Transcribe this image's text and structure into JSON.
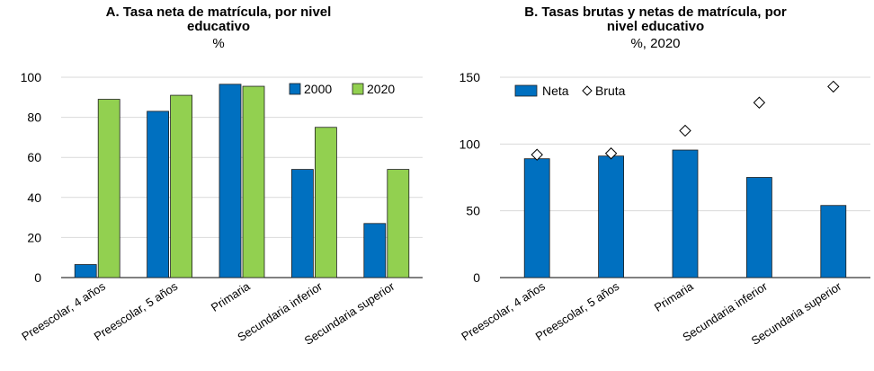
{
  "colors": {
    "series_2000": "#0070c0",
    "series_2020": "#92d050",
    "bar_edge": "#1f1f1f",
    "grid": "#d9d9d9",
    "axis": "#000000"
  },
  "chart_data": [
    {
      "type": "bar",
      "title_line1": "A. Tasa neta de matrícula, por nivel",
      "title_line2": "educativo",
      "subtitle": "%",
      "categories": [
        "Preescolar, 4 años",
        "Preescolar, 5 años",
        "Primaria",
        "Secundaria inferior",
        "Secundaria superior"
      ],
      "series": [
        {
          "name": "2000",
          "values": [
            6.5,
            83,
            96.5,
            54,
            27
          ]
        },
        {
          "name": "2020",
          "values": [
            89,
            91,
            95.5,
            75,
            54
          ]
        }
      ],
      "ylim": [
        0,
        100
      ],
      "yticks": [
        "0",
        "20",
        "40",
        "60",
        "80",
        "100"
      ],
      "grid": true,
      "legend_position": "top-right"
    },
    {
      "type": "bar",
      "title_line1": "B. Tasas brutas y netas de matrícula, por",
      "title_line2": "nivel educativo",
      "subtitle": "%, 2020",
      "categories": [
        "Preescolar, 4 años",
        "Preescolar, 5 años",
        "Primaria",
        "Secundaria inferior",
        "Secundaria superior"
      ],
      "series": [
        {
          "name": "Neta",
          "kind": "bar",
          "values": [
            89,
            91,
            95.5,
            75,
            54
          ]
        },
        {
          "name": "Bruta",
          "kind": "marker",
          "values": [
            92,
            93,
            110,
            131,
            143
          ]
        }
      ],
      "ylim": [
        0,
        150
      ],
      "yticks": [
        "0",
        "50",
        "100",
        "150"
      ],
      "grid": true,
      "legend_position": "top-left"
    }
  ]
}
